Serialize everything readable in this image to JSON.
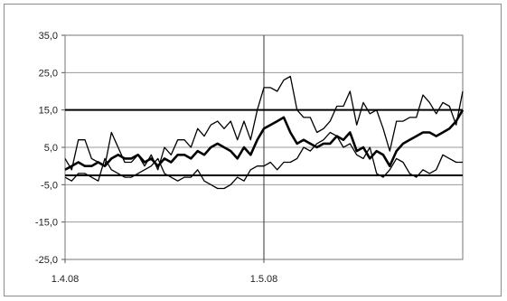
{
  "chart_data": {
    "type": "line",
    "title": "",
    "xlabel": "",
    "ylabel": "",
    "ylim": [
      -25.0,
      35.0
    ],
    "yticks": [
      35.0,
      25.0,
      15.0,
      5.0,
      -5.0,
      -15.0,
      -25.0
    ],
    "ytick_labels": [
      "35,0",
      "25,0",
      "15,0",
      "5,0",
      "-5,0",
      "-15,0",
      "-25,0"
    ],
    "x_tick_labels": [
      {
        "label": "1.4.08",
        "index": 0
      },
      {
        "label": "1.5.08",
        "index": 30
      }
    ],
    "x_count": 61,
    "grid": true,
    "reference_lines": [
      {
        "y": 15.0,
        "color": "#000000"
      },
      {
        "y": -2.5,
        "color": "#000000"
      }
    ],
    "reference_x_index": 30,
    "series": [
      {
        "color": "#000000",
        "values": [
          2,
          -1,
          7,
          7,
          2,
          1,
          0,
          9,
          5,
          1,
          1,
          3,
          0,
          3,
          -1,
          5,
          3,
          7,
          7,
          5,
          10,
          8,
          11,
          12,
          10,
          12,
          7,
          12,
          7,
          15,
          21,
          21,
          20,
          23,
          24,
          15,
          13,
          13,
          9,
          10,
          12,
          16,
          16,
          20,
          11,
          17,
          14,
          15,
          10,
          4,
          12,
          12,
          13,
          13,
          19,
          17,
          14,
          17,
          16,
          11,
          20
        ]
      },
      {
        "color": "#000000",
        "values": [
          -3,
          -4,
          -2,
          -2,
          -3,
          -4,
          2,
          -1,
          -2,
          -3,
          -3,
          -2,
          -1,
          0,
          2,
          -2,
          -3,
          -4,
          -3,
          -3,
          -1,
          -4,
          -5,
          -6,
          -6,
          -5,
          -3,
          -4,
          -1,
          0,
          0,
          1,
          -1,
          1,
          1,
          2,
          5,
          4,
          6,
          7,
          9,
          8,
          5,
          6,
          3,
          2,
          5,
          -2,
          -3,
          -1,
          2,
          1,
          -2,
          -3,
          -1,
          -2,
          -1,
          3,
          2,
          1,
          1
        ]
      },
      {
        "color": "#000000",
        "values": [
          -1,
          0,
          1,
          0,
          0,
          1,
          0,
          2,
          3,
          2,
          2,
          3,
          1,
          2,
          0,
          2,
          1,
          3,
          3,
          2,
          4,
          3,
          5,
          6,
          5,
          4,
          2,
          5,
          3,
          7,
          10,
          11,
          12,
          13,
          9,
          6,
          7,
          6,
          5,
          6,
          6,
          8,
          7,
          9,
          4,
          5,
          2,
          4,
          3,
          0,
          4,
          6,
          7,
          8,
          9,
          9,
          8,
          9,
          10,
          12,
          15
        ]
      }
    ]
  }
}
